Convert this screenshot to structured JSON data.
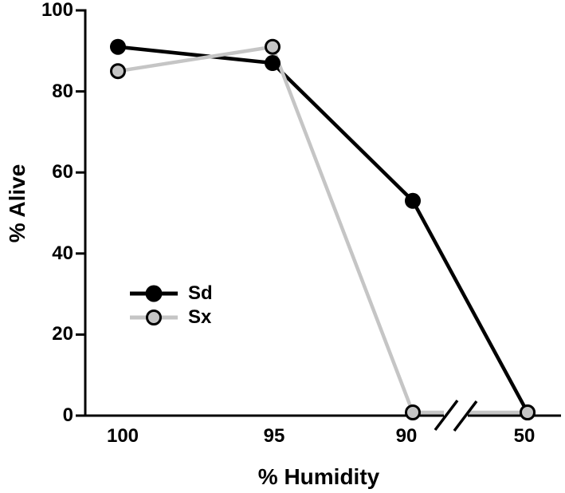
{
  "chart_data": {
    "type": "line",
    "title": "",
    "xlabel": "% Humidity",
    "ylabel": "% Alive",
    "categories": [
      "100",
      "95",
      "90",
      "50"
    ],
    "yticks": [
      "100",
      "80",
      "60",
      "40",
      "20",
      "0"
    ],
    "ylim": [
      0,
      100
    ],
    "grid": false,
    "x_axis_break": {
      "between": [
        "90",
        "50"
      ],
      "style": "double-slash"
    },
    "legend_position": "inside-left-middle",
    "series": [
      {
        "name": "Sd",
        "values": [
          91,
          87,
          53,
          0
        ],
        "color": "#000000",
        "marker": "filled-circle",
        "marker_fill": "#000000",
        "marker_edge": "#000000",
        "marker_edge_width": 0
      },
      {
        "name": "Sx",
        "values": [
          85,
          91,
          0,
          0
        ],
        "color": "#c5c5c5",
        "marker": "circle-black-edge",
        "marker_fill": "#c5c5c5",
        "marker_edge": "#000000",
        "marker_edge_width": 3
      }
    ]
  },
  "colors": {
    "background": "#ffffff",
    "axis": "#000000",
    "sd": "#000000",
    "sx": "#c5c5c5"
  }
}
